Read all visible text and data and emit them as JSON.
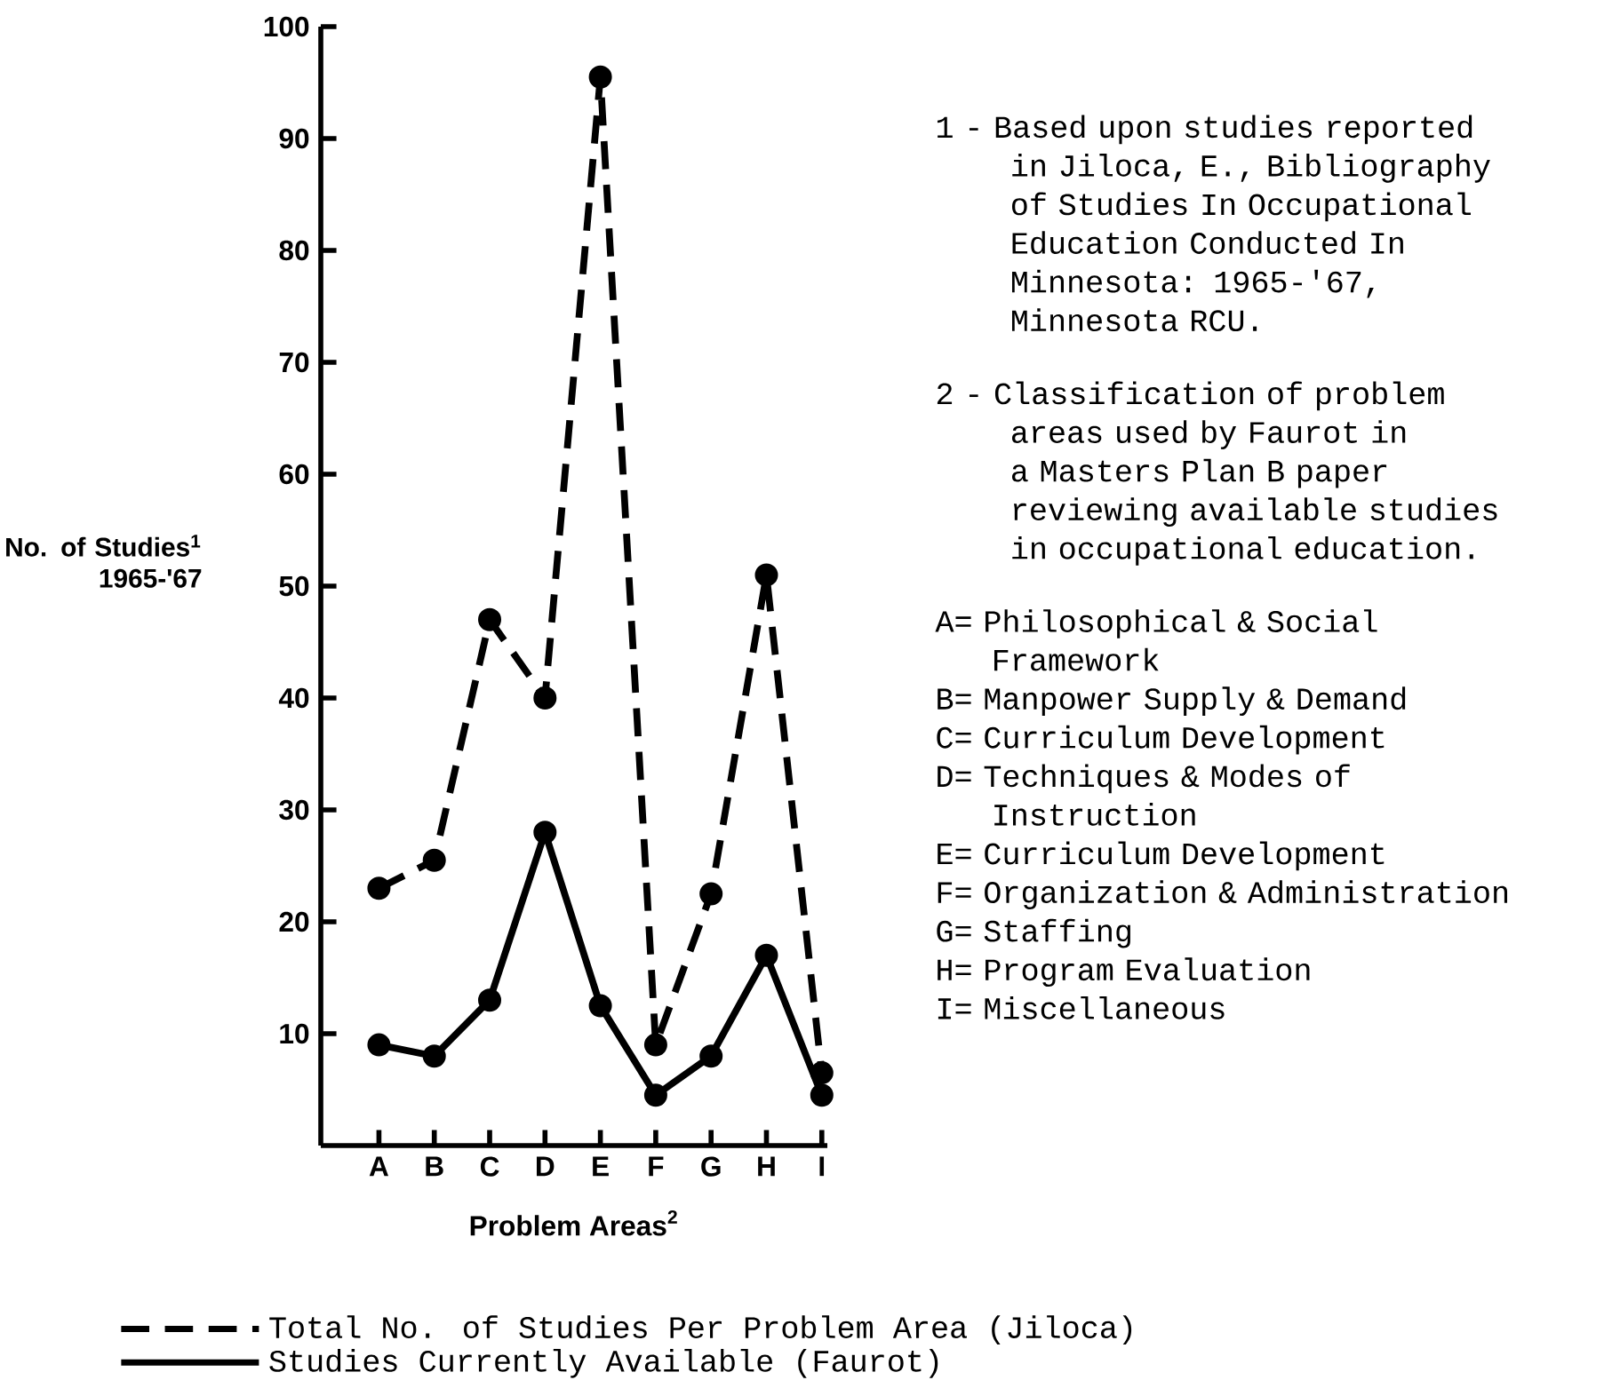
{
  "chart_data": {
    "type": "line",
    "xlabel": "Problem Areas$^{2}$",
    "ylabel": "No. of Studies$^{1}$ 1965-'67",
    "categories": [
      "A",
      "B",
      "C",
      "D",
      "E",
      "F",
      "G",
      "H",
      "I"
    ],
    "series": [
      {
        "name": "Total No. of Studies Per Problem Area (Jiloca)",
        "color": "#000000",
        "line_style": "dashed",
        "values": [
          23,
          25.5,
          47,
          40,
          95.5,
          9,
          22.5,
          51,
          6.5
        ]
      },
      {
        "name": "Studies Currently Available (Faurot)",
        "color": "#000000",
        "line_style": "solid",
        "values": [
          9,
          8,
          13,
          28,
          12.5,
          4.5,
          8,
          17,
          4.5
        ]
      }
    ],
    "ylim": [
      0,
      100
    ],
    "yticks": [
      10,
      20,
      30,
      40,
      50,
      60,
      70,
      80,
      90,
      100
    ],
    "marker": "circle",
    "legend": "bottom",
    "annotations": [
      "1 - Based upon studies reported in Jiloca, E., Bibliography of Studies In Occupational Education Conducted In Minnesota: 1965-'67, Minnesota RCU.",
      "2 - Classification of problem areas used by Faurot in a Masters Plan B paper reviewing available studies in occupational education.",
      "A= Philosophical & Social Framework",
      "B= Manpower Supply & Demand",
      "C= Curriculum Development",
      "D= Techniques & Modes of Instruction",
      "E= Curriculum Development",
      "F= Organization & Administration",
      "G= Staffing",
      "H= Program Evaluation",
      "I= Miscellaneous"
    ]
  }
}
